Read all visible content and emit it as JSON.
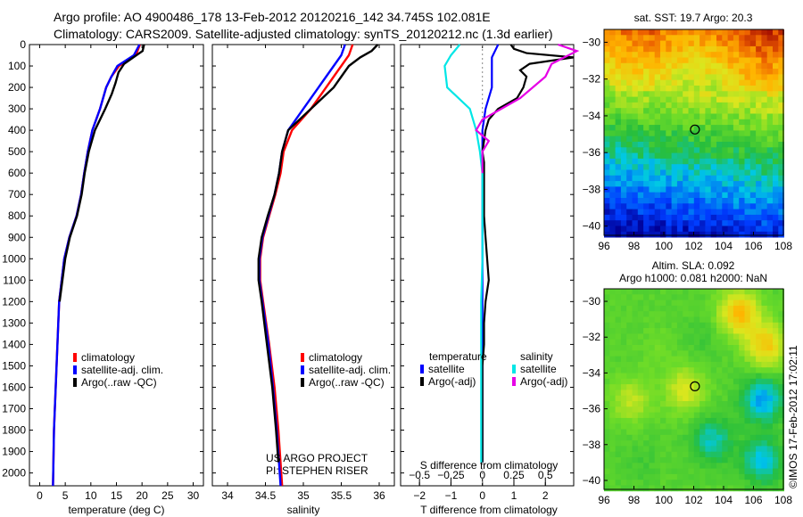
{
  "header": {
    "line1": "Argo profile: AO 4900486_178 13-Feb-2012 20120216_142 34.745S 102.081E",
    "line2": "Climatology: CARS2009. Satellite-adjusted climatology: synTS_20120212.nc (1.3d earlier)"
  },
  "colors": {
    "climatology": "#ff0000",
    "satellite": "#0000ff",
    "argo": "#000000",
    "satellite_salinity": "#00e6e6",
    "argo_salinity": "#e600e6"
  },
  "chart_data": [
    {
      "type": "line",
      "xlabel": "temperature (deg C)",
      "ylabel": "",
      "xlim": [
        -2,
        32
      ],
      "ylim": [
        2060,
        0
      ],
      "xticks": [
        0,
        5,
        10,
        15,
        20,
        25,
        30
      ],
      "yticks": [
        0,
        100,
        200,
        300,
        400,
        500,
        600,
        700,
        800,
        900,
        1000,
        1100,
        1200,
        1300,
        1400,
        1500,
        1600,
        1700,
        1800,
        1900,
        2000
      ],
      "legend": "middle-left",
      "series": [
        {
          "name": "climatology",
          "color": "#ff0000",
          "depth": [
            0,
            50,
            100,
            150,
            200,
            300,
            400,
            500,
            600,
            700,
            800,
            900,
            1000,
            1200,
            1500,
            1800,
            2060
          ],
          "values": [
            19.6,
            18.8,
            15.5,
            14,
            13,
            11.8,
            10.3,
            9.4,
            8.7,
            8.1,
            7.2,
            5.8,
            4.8,
            3.8,
            3.3,
            2.8,
            2.6
          ]
        },
        {
          "name": "satellite-adj. clim.",
          "color": "#0000ff",
          "depth": [
            0,
            50,
            100,
            150,
            200,
            300,
            400,
            500,
            600,
            700,
            800,
            900,
            1000,
            1200,
            1500,
            1800,
            2060
          ],
          "values": [
            19.5,
            18.4,
            15.2,
            14,
            13,
            11.8,
            10.3,
            9.4,
            8.7,
            8.1,
            7.2,
            5.8,
            4.8,
            3.8,
            3.3,
            2.8,
            2.6
          ]
        },
        {
          "name": "Argo(..raw -QC)",
          "color": "#000000",
          "depth": [
            0,
            30,
            60,
            90,
            130,
            180,
            230,
            300,
            400,
            500,
            600,
            700,
            800,
            900,
            1000,
            1200
          ],
          "values": [
            20.4,
            20.1,
            18.3,
            16.5,
            15.4,
            14.8,
            14.1,
            12.8,
            10.8,
            9.6,
            8.8,
            8.2,
            7.3,
            5.9,
            5,
            3.9
          ]
        }
      ]
    },
    {
      "type": "line",
      "xlabel": "salinity",
      "ylabel": "",
      "xlim": [
        33.8,
        36.2
      ],
      "ylim": [
        2060,
        0
      ],
      "xticks": [
        34,
        34.5,
        35,
        35.5,
        36
      ],
      "legend": "middle-right",
      "series": [
        {
          "name": "climatology",
          "color": "#ff0000",
          "depth": [
            0,
            50,
            100,
            150,
            200,
            300,
            400,
            500,
            600,
            700,
            800,
            900,
            1000,
            1100,
            1200,
            1400,
            1600,
            1800,
            2060
          ],
          "values": [
            35.65,
            35.6,
            35.5,
            35.4,
            35.3,
            35.1,
            34.85,
            34.74,
            34.7,
            34.63,
            34.55,
            34.47,
            34.43,
            34.43,
            34.47,
            34.55,
            34.62,
            34.67,
            34.72
          ]
        },
        {
          "name": "satellite-adj. clim.",
          "color": "#0000ff",
          "depth": [
            0,
            50,
            100,
            150,
            200,
            300,
            400,
            500,
            600,
            700,
            800,
            900,
            1000,
            1100,
            1200,
            1400,
            1600,
            1800,
            2060
          ],
          "values": [
            35.55,
            35.5,
            35.4,
            35.3,
            35.2,
            35.0,
            34.8,
            34.72,
            34.68,
            34.62,
            34.54,
            34.46,
            34.42,
            34.42,
            34.46,
            34.54,
            34.6,
            34.65,
            34.7
          ]
        },
        {
          "name": "Argo(..raw -QC)",
          "color": "#000000",
          "depth": [
            0,
            30,
            60,
            100,
            150,
            200,
            300,
            400,
            500,
            600,
            700,
            800,
            900,
            1000,
            1100,
            1200,
            1400,
            1600,
            1800,
            1950
          ],
          "values": [
            35.98,
            35.9,
            35.75,
            35.6,
            35.5,
            35.4,
            35.1,
            34.8,
            34.72,
            34.68,
            34.62,
            34.53,
            34.45,
            34.41,
            34.41,
            34.45,
            34.52,
            34.59,
            34.64,
            34.67
          ]
        }
      ]
    },
    {
      "type": "line",
      "title": "",
      "xlabel": "T difference from climatology",
      "xlabel_top": "S difference from climatology",
      "xlim": [
        -2.6,
        2.9
      ],
      "xticks": [
        -2,
        -1,
        0,
        1,
        2
      ],
      "xticks_top": [
        "-0.5",
        "-0.25",
        "0",
        "0.25",
        "0.5"
      ],
      "legend": "middle",
      "legend_groups": [
        "temperature",
        "salinity"
      ],
      "series": [
        {
          "name": "satellite",
          "group": "temperature",
          "color": "#0000ff",
          "depth": [
            0,
            30,
            60,
            100,
            200,
            300,
            400,
            500,
            600,
            700,
            800,
            1000,
            1200,
            1500,
            1800,
            1950
          ],
          "values": [
            0.5,
            0.4,
            0.3,
            0.3,
            0.3,
            0.1,
            0,
            0,
            0,
            0,
            0,
            0,
            0,
            0,
            0,
            0
          ]
        },
        {
          "name": "Argo(-adj)",
          "group": "temperature",
          "color": "#000000",
          "depth": [
            0,
            20,
            40,
            60,
            90,
            120,
            150,
            200,
            250,
            300,
            350,
            400,
            450,
            500,
            550,
            600,
            700,
            800,
            900,
            1000,
            1100,
            1200,
            1300,
            1400,
            1500,
            1600,
            1700,
            1800,
            1950
          ],
          "values": [
            0.9,
            1.0,
            1.4,
            2.9,
            1.5,
            1.2,
            1.4,
            1.3,
            1.1,
            0.5,
            0.2,
            0.1,
            0.05,
            0,
            0.05,
            0.05,
            0.05,
            0.05,
            0.1,
            0.15,
            0.2,
            0.1,
            0.05,
            0.05,
            0,
            0,
            0,
            0,
            0
          ]
        },
        {
          "name": "satellite",
          "group": "salinity",
          "color": "#00e6e6",
          "depth": [
            0,
            50,
            100,
            200,
            300,
            400,
            500,
            600,
            700,
            800,
            1000,
            1200,
            1500,
            1800,
            1950
          ],
          "values": [
            -0.18,
            -0.25,
            -0.3,
            -0.28,
            -0.1,
            -0.05,
            -0.02,
            0,
            0,
            0,
            0,
            -0.01,
            -0.01,
            -0.01,
            -0.01
          ]
        },
        {
          "name": "Argo(-adj)",
          "group": "salinity",
          "color": "#e600e6",
          "depth": [
            0,
            30,
            60,
            90,
            150,
            250,
            350,
            400,
            450,
            500,
            550,
            600
          ],
          "values": [
            0.6,
            0.75,
            0.65,
            0.55,
            0.5,
            0.3,
            0,
            -0.05,
            0.05,
            0,
            0,
            0
          ]
        }
      ]
    },
    {
      "type": "heatmap",
      "title": "sat. SST: 19.7  Argo: 20.3",
      "xticks": [
        96,
        98,
        100,
        102,
        104,
        106,
        108
      ],
      "yticks": [
        -30,
        -32,
        -34,
        -36,
        -38,
        -40
      ],
      "xlim": [
        96,
        108
      ],
      "ylim": [
        -40.5,
        -29.3
      ],
      "marker": {
        "lon": 102.081,
        "lat": -34.745
      }
    },
    {
      "type": "heatmap",
      "title_line1": "Altim. SLA: 0.092",
      "title_line2": "Argo h1000: 0.081 h2000: NaN",
      "xticks": [
        96,
        98,
        100,
        102,
        104,
        106,
        108
      ],
      "yticks": [
        -30,
        -32,
        -34,
        -36,
        -38,
        -40
      ],
      "xlim": [
        96,
        108
      ],
      "ylim": [
        -40.5,
        -29.3
      ],
      "marker": {
        "lon": 102.081,
        "lat": -34.745
      }
    }
  ],
  "legends": {
    "profile_entries": [
      "climatology",
      "satellite-adj. clim.",
      "Argo(..raw -QC)"
    ],
    "diff_headers": [
      "temperature",
      "salinity"
    ],
    "diff_entries": [
      "satellite",
      "Argo(-adj)",
      "satellite",
      "Argo(-adj)"
    ]
  },
  "credits": {
    "project": "US ARGO PROJECT",
    "pi": "PI: STEPHEN RISER",
    "imos": "©IMOS 17-Feb-2012 17:02:11"
  }
}
